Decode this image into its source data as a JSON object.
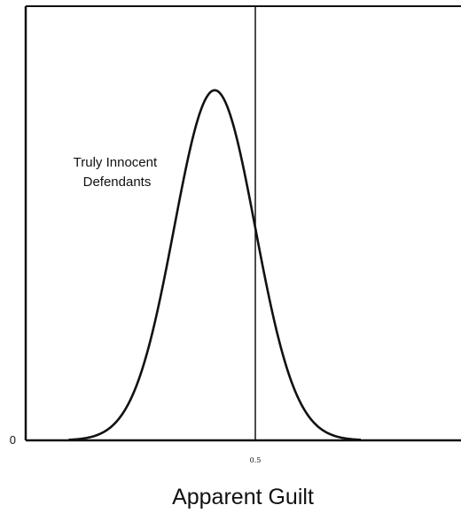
{
  "chart_data": {
    "type": "line",
    "title": "",
    "xlabel": "Apparent Guilt",
    "ylabel": "",
    "xlim": [
      0,
      1
    ],
    "ylim": [
      0,
      1.24
    ],
    "grid": false,
    "x_tick_labels": [
      {
        "x": 0.5,
        "label": "0.5"
      }
    ],
    "y_tick_labels": [
      {
        "y": 0,
        "label": "0"
      }
    ],
    "reference_lines": [
      {
        "axis": "x",
        "value": 0.5
      }
    ],
    "series": [
      {
        "name": "",
        "distribution": "normal",
        "mean": 0.4,
        "sd": 0.1,
        "peak": 1,
        "x": [
          0.05,
          0.1,
          0.15,
          0.2,
          0.25,
          0.3,
          0.35,
          0.4,
          0.45,
          0.5,
          0.55,
          0.6,
          0.65,
          0.7,
          0.75
        ],
        "y": [
          0.002,
          0.011,
          0.044,
          0.135,
          0.325,
          0.607,
          0.882,
          1.0,
          0.882,
          0.607,
          0.325,
          0.135,
          0.044,
          0.011,
          0.002
        ]
      }
    ],
    "annotations": [
      {
        "lines": [
          "Truly Innocent",
          "Defendants"
        ]
      }
    ]
  }
}
